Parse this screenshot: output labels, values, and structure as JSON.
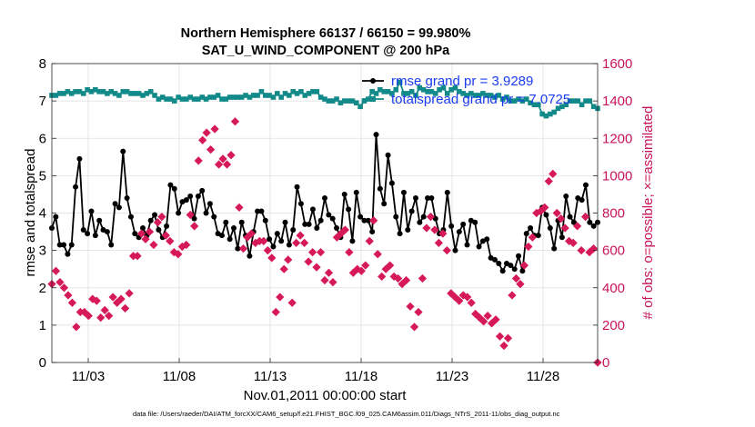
{
  "chart_data": {
    "type": "line",
    "title": "Northern Hemisphere 66137 / 66150 = 99.980%",
    "subtitle": "SAT_U_WIND_COMPONENT @ 200 hPa",
    "xlabel": "Nov.01,2011 00:00:00 start",
    "ylabel": "rmse and totalspread",
    "ylabel_right": "# of obs: o=possible; ×=assimilated",
    "xlim": [
      1,
      31
    ],
    "ylim": [
      0,
      8
    ],
    "ylim_right": [
      0,
      1600
    ],
    "x_ticks": [
      3,
      8,
      13,
      18,
      23,
      28
    ],
    "x_tick_labels": [
      "11/03",
      "11/08",
      "11/13",
      "11/18",
      "11/23",
      "11/28"
    ],
    "y_ticks": [
      0,
      1,
      2,
      3,
      4,
      5,
      6,
      7,
      8
    ],
    "y_ticks_right": [
      0,
      200,
      400,
      600,
      800,
      1000,
      1200,
      1400,
      1600
    ],
    "grid": true,
    "legend_position": "top-right",
    "footer": "data file: /Users/raeder/DAI/ATM_forcXX/CAM6_setup/f.e21.FHIST_BGC.f09_025.CAM6assim.011/Diags_NTrS_2011-11/obs_diag_output.nc",
    "series": [
      {
        "name": "rmse grand pr = 3.9289",
        "color": "#000000",
        "marker": "circle",
        "values": [
          3.6,
          3.9,
          3.15,
          3.15,
          2.9,
          3.15,
          4.7,
          5.45,
          3.55,
          3.45,
          4.05,
          3.4,
          3.8,
          3.55,
          3.5,
          3.15,
          4.25,
          4.15,
          5.65,
          4.4,
          3.9,
          3.45,
          3.35,
          3.6,
          3.4,
          3.8,
          3.95,
          3.55,
          3.35,
          3.65,
          4.75,
          4.65,
          4.0,
          4.3,
          4.35,
          4.45,
          3.85,
          4.45,
          4.6,
          4.0,
          4.25,
          3.9,
          3.45,
          3.4,
          3.75,
          3.3,
          3.6,
          3.05,
          3.75,
          3.4,
          2.85,
          3.5,
          4.05,
          4.05,
          3.8,
          3.3,
          3.1,
          3.45,
          3.25,
          3.75,
          3.15,
          3.55,
          4.7,
          4.25,
          3.7,
          3.7,
          4.1,
          3.6,
          3.8,
          4.4,
          3.95,
          3.85,
          3.6,
          3.35,
          4.5,
          4.1,
          3.25,
          4.55,
          3.9,
          3.8,
          3.8,
          3.5,
          6.1,
          4.65,
          4.25,
          5.55,
          4.8,
          3.9,
          3.45,
          4.55,
          3.55,
          4.05,
          4.4,
          3.75,
          3.9,
          4.4,
          4.4,
          3.85,
          3.45,
          3.55,
          4.55,
          3.65,
          3.0,
          3.5,
          3.7,
          3.15,
          3.8,
          3.75,
          3.1,
          3.25,
          3.3,
          2.8,
          2.75,
          2.65,
          2.45,
          2.65,
          2.6,
          2.5,
          2.85,
          2.45,
          3.45,
          3.6,
          3.4,
          3.4,
          4.15,
          3.95,
          3.6,
          3.05,
          3.8,
          3.35,
          4.45,
          3.9,
          3.75,
          4.4,
          4.35,
          4.75,
          3.75,
          3.65,
          3.75
        ]
      },
      {
        "name": "totalspread grand pr = 7.0725",
        "color": "#138a8a",
        "marker": "square",
        "values": [
          7.15,
          7.15,
          7.2,
          7.2,
          7.25,
          7.2,
          7.25,
          7.25,
          7.2,
          7.3,
          7.25,
          7.3,
          7.25,
          7.25,
          7.2,
          7.25,
          7.2,
          7.15,
          7.25,
          7.25,
          7.2,
          7.2,
          7.2,
          7.15,
          7.2,
          7.25,
          7.15,
          7.05,
          7.1,
          7.05,
          7.05,
          7.0,
          7.1,
          7.05,
          7.05,
          7.1,
          7.05,
          7.05,
          7.1,
          7.05,
          7.1,
          7.1,
          7.15,
          7.05,
          7.05,
          7.1,
          7.1,
          7.1,
          7.1,
          7.15,
          7.1,
          7.15,
          7.15,
          7.25,
          7.15,
          7.15,
          7.1,
          7.2,
          7.1,
          7.2,
          7.15,
          7.25,
          7.2,
          7.25,
          7.15,
          7.2,
          7.25,
          7.25,
          7.1,
          7.05,
          7.0,
          7.0,
          7.05,
          6.95,
          7.0,
          7.0,
          7.0,
          6.95,
          6.85,
          7.0,
          7.05,
          7.25,
          7.2,
          7.3,
          7.25,
          7.25,
          7.2,
          7.3,
          7.5,
          7.2,
          7.2,
          7.25,
          7.15,
          7.35,
          7.3,
          7.25,
          7.25,
          7.2,
          7.3,
          7.35,
          7.2,
          7.3,
          7.35,
          7.25,
          7.2,
          7.15,
          7.2,
          7.15,
          7.15,
          7.2,
          7.15,
          7.15,
          7.1,
          7.15,
          7.05,
          7.1,
          7.0,
          7.0,
          7.05,
          7.0,
          7.05,
          6.95,
          6.9,
          6.9,
          6.65,
          6.6,
          6.65,
          6.7,
          6.8,
          6.85,
          6.9,
          7.0,
          7.0,
          7.0,
          6.9,
          7.0,
          7.0,
          6.85,
          6.8
        ]
      },
      {
        "name": "assimilated",
        "color": "#d6195a",
        "marker": "x",
        "axis": "right",
        "values": [
          420,
          490,
          430,
          400,
          360,
          320,
          190,
          270,
          270,
          250,
          340,
          330,
          240,
          280,
          250,
          350,
          320,
          340,
          290,
          370,
          570,
          570,
          690,
          660,
          700,
          630,
          750,
          780,
          680,
          650,
          590,
          580,
          620,
          630,
          790,
          730,
          1080,
          1190,
          1230,
          1140,
          1250,
          1060,
          1090,
          1060,
          1110,
          1290,
          830,
          610,
          670,
          690,
          640,
          650,
          650,
          600,
          560,
          270,
          350,
          500,
          550,
          320,
          640,
          680,
          640,
          540,
          590,
          510,
          590,
          440,
          480,
          430,
          670,
          690,
          710,
          590,
          480,
          500,
          490,
          520,
          650,
          760,
          580,
          460,
          500,
          520,
          460,
          450,
          420,
          440,
          300,
          190,
          270,
          450,
          720,
          780,
          710,
          640,
          690,
          600,
          370,
          350,
          330,
          360,
          350,
          320,
          260,
          240,
          220,
          250,
          210,
          230,
          140,
          90,
          130,
          360,
          450,
          420,
          520,
          620,
          670,
          800,
          810,
          830,
          970,
          1010,
          800,
          770,
          720,
          650,
          640,
          730,
          600,
          780,
          590,
          610,
          0
        ]
      }
    ]
  }
}
